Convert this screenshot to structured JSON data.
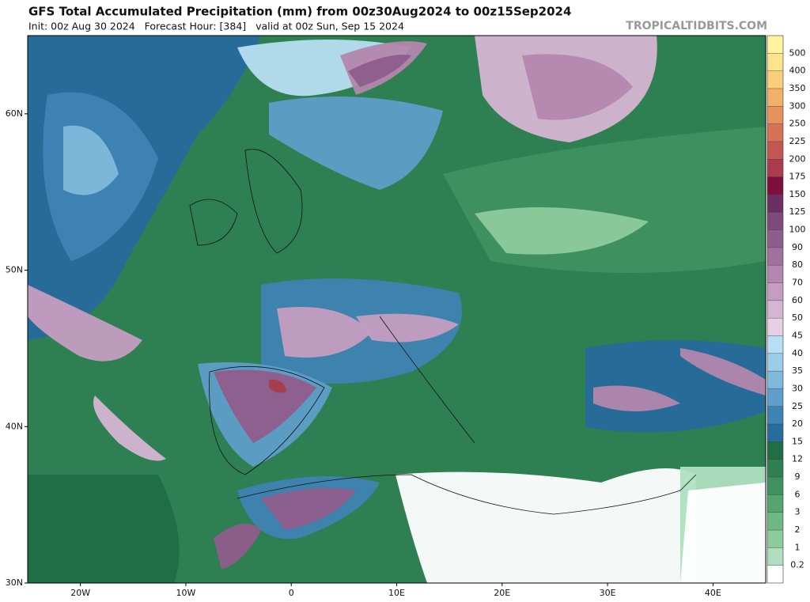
{
  "header": {
    "title": "GFS Total Accumulated Precipitation (mm) from 00z30Aug2024 to 00z15Sep2024",
    "subtitle": "Init: 00z Aug 30 2024   Forecast Hour: [384]   valid at 00z Sun, Sep 15 2024",
    "site": "TROPICALTIDBITS.COM"
  },
  "map": {
    "lon_range": [
      -25,
      45
    ],
    "lat_range": [
      30,
      65
    ],
    "lat_ticks": [
      {
        "value": 60,
        "label": "60N"
      },
      {
        "value": 50,
        "label": "50N"
      },
      {
        "value": 40,
        "label": "40N"
      },
      {
        "value": 30,
        "label": "30N"
      }
    ],
    "lon_ticks": [
      {
        "value": -20,
        "label": "20W"
      },
      {
        "value": -10,
        "label": "10W"
      },
      {
        "value": 0,
        "label": "0"
      },
      {
        "value": 10,
        "label": "10E"
      },
      {
        "value": 20,
        "label": "20E"
      },
      {
        "value": 30,
        "label": "30E"
      },
      {
        "value": 40,
        "label": "40E"
      }
    ]
  },
  "colorbar": {
    "levels": [
      500,
      400,
      350,
      300,
      250,
      225,
      200,
      175,
      150,
      125,
      100,
      90,
      80,
      70,
      60,
      50,
      45,
      40,
      35,
      30,
      25,
      20,
      15,
      12,
      9,
      6,
      3,
      2,
      1,
      0.2
    ],
    "colors": [
      "#fff3a0",
      "#fde48c",
      "#f9cf7a",
      "#f2b16a",
      "#e6925c",
      "#d87257",
      "#c35752",
      "#a93c4d",
      "#7c0f3b",
      "#6b2f62",
      "#7e4a7c",
      "#8f5d8c",
      "#a1719d",
      "#b387ae",
      "#c59dc0",
      "#d6b5d3",
      "#e6d0e6",
      "#b7def2",
      "#9ccde8",
      "#7fb8db",
      "#5f9ec9",
      "#3e84b3",
      "#276c9c",
      "#1f6e46",
      "#2e7f52",
      "#3f9160",
      "#55a56f",
      "#6eb883",
      "#8ccb9c",
      "#afdfc0",
      "#ffffff"
    ]
  }
}
